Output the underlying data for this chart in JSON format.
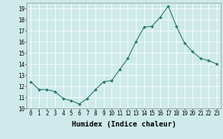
{
  "x": [
    0,
    1,
    2,
    3,
    4,
    5,
    6,
    7,
    8,
    9,
    10,
    11,
    12,
    13,
    14,
    15,
    16,
    17,
    18,
    19,
    20,
    21,
    22,
    23
  ],
  "y": [
    12.4,
    11.7,
    11.7,
    11.5,
    10.9,
    10.7,
    10.4,
    10.9,
    11.7,
    12.4,
    12.5,
    13.5,
    14.5,
    16.0,
    17.3,
    17.4,
    18.2,
    19.2,
    17.4,
    15.9,
    15.1,
    14.5,
    14.3,
    14.0
  ],
  "line_color": "#2e7d6e",
  "marker": "D",
  "marker_size": 2.0,
  "bg_color": "#ceeaea",
  "grid_color": "#ffffff",
  "xlabel": "Humidex (Indice chaleur)",
  "ylim": [
    10,
    19.5
  ],
  "xlim": [
    -0.5,
    23.5
  ],
  "yticks": [
    10,
    11,
    12,
    13,
    14,
    15,
    16,
    17,
    18,
    19
  ],
  "xtick_labels": [
    "0",
    "1",
    "2",
    "3",
    "4",
    "5",
    "6",
    "7",
    "8",
    "9",
    "10",
    "11",
    "12",
    "13",
    "14",
    "15",
    "16",
    "17",
    "18",
    "19",
    "20",
    "21",
    "22",
    "23"
  ],
  "tick_fontsize": 5.5,
  "label_fontsize": 7.5,
  "linewidth": 0.9
}
